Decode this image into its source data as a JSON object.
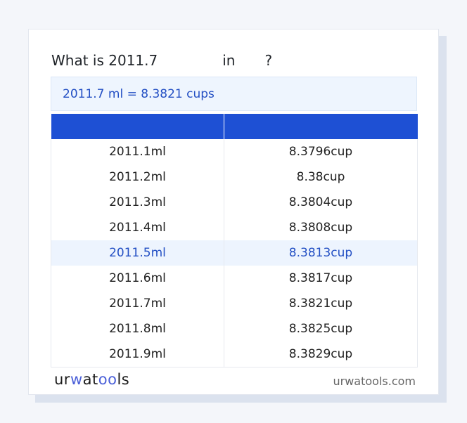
{
  "question": {
    "prefix": "What is 2011.7",
    "middle": "in",
    "suffix": "?"
  },
  "result": "2011.7 ml = 8.3821 cups",
  "table": {
    "headers": [
      "",
      ""
    ],
    "rows": [
      [
        "2011.1ml",
        "8.3796cup"
      ],
      [
        "2011.2ml",
        "8.38cup"
      ],
      [
        "2011.3ml",
        "8.3804cup"
      ],
      [
        "2011.4ml",
        "8.3808cup"
      ],
      [
        "2011.5ml",
        "8.3813cup"
      ],
      [
        "2011.6ml",
        "8.3817cup"
      ],
      [
        "2011.7ml",
        "8.3821cup"
      ],
      [
        "2011.8ml",
        "8.3825cup"
      ],
      [
        "2011.9ml",
        "8.3829cup"
      ]
    ],
    "highlighted_row": 4
  },
  "footer": {
    "logo": "urwatools",
    "site": "urwatools.com"
  },
  "colors": {
    "accent": "#1e50d4",
    "highlight_bg": "#edf4fe",
    "result_text": "#2450c4"
  }
}
